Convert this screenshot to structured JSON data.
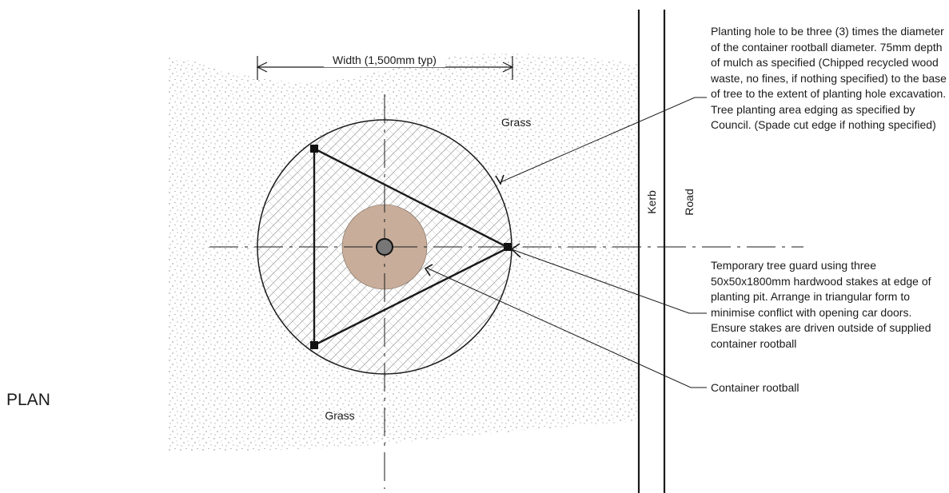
{
  "plan_label": "PLAN",
  "dimension_label": "Width (1,500mm typ)",
  "grass_top_label": "Grass",
  "grass_bottom_label": "Grass",
  "kerb_label": "Kerb",
  "road_label": "Road",
  "notes": {
    "planting_hole": "Planting hole to be three (3) times the diameter of the container rootball diameter. 75mm depth of mulch as specified (Chipped recycled wood waste, no fines, if nothing specified) to the base of tree to the extent of planting hole excavation. Tree planting area edging as specified by Council. (Spade cut edge if nothing specified)",
    "tree_guard": "Temporary tree guard using three 50x50x1800mm hardwood stakes at edge of planting pit. Arrange in triangular form to minimise conflict with opening car doors. Ensure stakes are driven outside of supplied container rootball",
    "rootball": "Container rootball"
  },
  "colors": {
    "rootball_fill": "#c8ad9b",
    "line": "#1a1a1a",
    "stipple": "#555555"
  }
}
